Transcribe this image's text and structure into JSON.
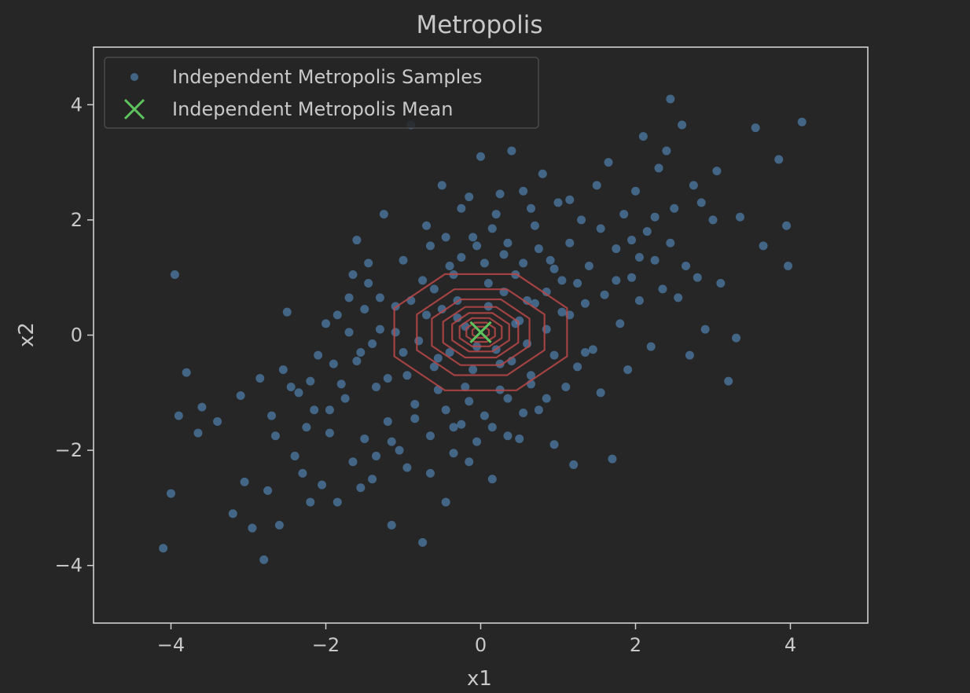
{
  "chart_data": {
    "type": "scatter",
    "title": "Metropolis",
    "xlabel": "x1",
    "ylabel": "x2",
    "xlim": [
      -5,
      5
    ],
    "ylim": [
      -5,
      5
    ],
    "xticks": [
      -4,
      -2,
      0,
      2,
      4
    ],
    "yticks": [
      -4,
      -2,
      0,
      2,
      4
    ],
    "xtick_labels": [
      "−4",
      "−2",
      "0",
      "2",
      "4"
    ],
    "ytick_labels": [
      "−4",
      "−2",
      "0",
      "2",
      "4"
    ],
    "grid": false,
    "legend_position": "upper-left",
    "series": [
      {
        "name": "Independent Metropolis Samples",
        "kind": "scatter",
        "color": "#5b9bd5",
        "points": [
          [
            -4.1,
            -3.7
          ],
          [
            -4.0,
            -2.75
          ],
          [
            -3.95,
            1.05
          ],
          [
            -3.9,
            -1.4
          ],
          [
            -3.8,
            -0.65
          ],
          [
            -3.65,
            -1.7
          ],
          [
            -3.6,
            -1.25
          ],
          [
            -3.2,
            -3.1
          ],
          [
            -3.05,
            -2.55
          ],
          [
            -2.95,
            -3.35
          ],
          [
            -2.8,
            -3.9
          ],
          [
            -2.75,
            -2.7
          ],
          [
            -2.7,
            -1.4
          ],
          [
            -2.6,
            -3.3
          ],
          [
            -2.55,
            -0.6
          ],
          [
            -2.5,
            0.4
          ],
          [
            -2.4,
            -2.1
          ],
          [
            -2.35,
            -1.0
          ],
          [
            -2.3,
            -2.4
          ],
          [
            -2.2,
            -0.8
          ],
          [
            -2.15,
            -1.3
          ],
          [
            -2.05,
            -2.6
          ],
          [
            -2.0,
            0.2
          ],
          [
            -1.95,
            -1.7
          ],
          [
            -1.9,
            -0.5
          ],
          [
            -1.85,
            -2.9
          ],
          [
            -1.75,
            -1.1
          ],
          [
            -1.7,
            0.65
          ],
          [
            -1.65,
            -2.2
          ],
          [
            -1.6,
            1.65
          ],
          [
            -1.55,
            -0.3
          ],
          [
            -1.5,
            -1.8
          ],
          [
            -1.45,
            0.9
          ],
          [
            -1.4,
            -2.5
          ],
          [
            -1.35,
            -0.9
          ],
          [
            -1.3,
            0.1
          ],
          [
            -1.25,
            2.1
          ],
          [
            -1.2,
            -1.5
          ],
          [
            -1.15,
            -3.3
          ],
          [
            -1.1,
            0.5
          ],
          [
            -1.05,
            -2.0
          ],
          [
            -1.0,
            1.3
          ],
          [
            -0.95,
            -0.7
          ],
          [
            -0.9,
            3.65
          ],
          [
            -0.85,
            -1.2
          ],
          [
            -0.75,
            -3.6
          ],
          [
            -0.7,
            1.9
          ],
          [
            -0.65,
            -2.4
          ],
          [
            -0.6,
            0.8
          ],
          [
            -0.55,
            -0.4
          ],
          [
            -0.5,
            2.6
          ],
          [
            -0.45,
            -2.9
          ],
          [
            -0.4,
            1.2
          ],
          [
            -0.35,
            -1.6
          ],
          [
            -0.3,
            0.3
          ],
          [
            -0.25,
            2.2
          ],
          [
            -0.2,
            -0.9
          ],
          [
            -0.15,
            -2.2
          ],
          [
            -0.1,
            1.7
          ],
          [
            -0.05,
            -0.2
          ],
          [
            0.0,
            3.1
          ],
          [
            0.05,
            -1.4
          ],
          [
            0.1,
            0.9
          ],
          [
            0.15,
            -2.5
          ],
          [
            0.2,
            2.1
          ],
          [
            0.25,
            -0.5
          ],
          [
            0.3,
            1.4
          ],
          [
            0.35,
            -1.1
          ],
          [
            0.4,
            3.2
          ],
          [
            0.45,
            0.2
          ],
          [
            0.5,
            -1.8
          ],
          [
            0.55,
            2.5
          ],
          [
            0.6,
            0.6
          ],
          [
            0.65,
            -0.7
          ],
          [
            0.7,
            1.9
          ],
          [
            0.75,
            -1.3
          ],
          [
            0.8,
            2.8
          ],
          [
            0.85,
            0.1
          ],
          [
            0.9,
            1.3
          ],
          [
            0.95,
            -1.9
          ],
          [
            1.0,
            2.3
          ],
          [
            1.05,
            0.4
          ],
          [
            1.1,
            -0.9
          ],
          [
            1.15,
            1.6
          ],
          [
            1.2,
            -2.25
          ],
          [
            1.25,
            0.9
          ],
          [
            1.3,
            2.0
          ],
          [
            1.35,
            -0.3
          ],
          [
            1.4,
            1.2
          ],
          [
            1.5,
            2.6
          ],
          [
            1.55,
            -1.0
          ],
          [
            1.6,
            0.7
          ],
          [
            1.65,
            3.0
          ],
          [
            1.7,
            -2.15
          ],
          [
            1.75,
            1.5
          ],
          [
            1.8,
            0.2
          ],
          [
            1.85,
            2.1
          ],
          [
            1.9,
            -0.6
          ],
          [
            1.95,
            1.0
          ],
          [
            2.0,
            2.5
          ],
          [
            2.05,
            0.6
          ],
          [
            2.1,
            3.45
          ],
          [
            2.15,
            1.8
          ],
          [
            2.2,
            -0.2
          ],
          [
            2.25,
            1.3
          ],
          [
            2.3,
            2.9
          ],
          [
            2.35,
            0.8
          ],
          [
            2.4,
            3.2
          ],
          [
            2.45,
            1.6
          ],
          [
            2.5,
            2.2
          ],
          [
            2.55,
            0.65
          ],
          [
            2.6,
            3.65
          ],
          [
            2.65,
            1.2
          ],
          [
            2.7,
            -0.35
          ],
          [
            2.75,
            2.6
          ],
          [
            2.8,
            1.0
          ],
          [
            2.85,
            2.3
          ],
          [
            2.9,
            0.1
          ],
          [
            3.0,
            2.0
          ],
          [
            3.05,
            2.85
          ],
          [
            3.1,
            0.9
          ],
          [
            3.2,
            -0.8
          ],
          [
            3.3,
            -0.05
          ],
          [
            3.35,
            2.05
          ],
          [
            3.55,
            3.6
          ],
          [
            3.65,
            1.55
          ],
          [
            3.85,
            3.05
          ],
          [
            3.95,
            1.9
          ],
          [
            3.97,
            1.2
          ],
          [
            4.15,
            3.7
          ],
          [
            2.45,
            4.1
          ],
          [
            -0.8,
            -0.1
          ],
          [
            -0.7,
            0.35
          ],
          [
            -0.6,
            -0.55
          ],
          [
            -0.5,
            0.45
          ],
          [
            -0.4,
            -0.3
          ],
          [
            -0.3,
            0.6
          ],
          [
            -0.2,
            0.15
          ],
          [
            -0.1,
            -0.6
          ],
          [
            0.1,
            0.5
          ],
          [
            0.2,
            -0.25
          ],
          [
            0.3,
            0.75
          ],
          [
            0.4,
            -0.45
          ],
          [
            0.5,
            0.25
          ],
          [
            0.6,
            -0.15
          ],
          [
            0.7,
            0.55
          ],
          [
            -0.9,
            0.6
          ],
          [
            -1.0,
            -0.3
          ],
          [
            -1.1,
            0.05
          ],
          [
            -0.75,
            0.95
          ],
          [
            -0.55,
            -0.95
          ],
          [
            -0.35,
            1.05
          ],
          [
            -0.15,
            -1.15
          ],
          [
            0.05,
            1.25
          ],
          [
            0.25,
            -0.95
          ],
          [
            0.45,
            1.05
          ],
          [
            0.65,
            -0.85
          ],
          [
            0.85,
            0.75
          ],
          [
            0.95,
            -0.35
          ],
          [
            1.05,
            0.95
          ],
          [
            -1.2,
            -0.75
          ],
          [
            -1.3,
            0.65
          ],
          [
            -1.4,
            -0.15
          ],
          [
            -1.5,
            0.45
          ],
          [
            -1.6,
            -0.45
          ],
          [
            -1.7,
            0.05
          ],
          [
            -1.8,
            -0.85
          ],
          [
            -0.85,
            -1.45
          ],
          [
            -0.65,
            -1.75
          ],
          [
            -0.45,
            -1.3
          ],
          [
            -0.25,
            -1.55
          ],
          [
            -0.05,
            -1.85
          ],
          [
            0.15,
            -1.6
          ],
          [
            0.35,
            -1.75
          ],
          [
            -0.65,
            1.55
          ],
          [
            -0.45,
            1.7
          ],
          [
            -0.25,
            1.35
          ],
          [
            -0.05,
            1.55
          ],
          [
            0.15,
            1.85
          ],
          [
            0.35,
            1.6
          ],
          [
            0.55,
            1.25
          ],
          [
            0.75,
            1.5
          ],
          [
            0.95,
            1.15
          ],
          [
            1.15,
            0.35
          ],
          [
            1.25,
            -0.55
          ],
          [
            1.35,
            0.55
          ],
          [
            1.45,
            -0.25
          ],
          [
            -1.95,
            -1.3
          ],
          [
            -2.1,
            -0.35
          ],
          [
            -2.25,
            -1.6
          ],
          [
            -2.45,
            -0.9
          ],
          [
            -1.35,
            -2.1
          ],
          [
            -1.15,
            -1.85
          ],
          [
            -0.95,
            -2.3
          ],
          [
            -0.35,
            -2.05
          ],
          [
            0.55,
            -1.35
          ],
          [
            0.85,
            -1.1
          ],
          [
            1.55,
            1.85
          ],
          [
            1.75,
            0.95
          ],
          [
            1.95,
            1.65
          ],
          [
            2.05,
            1.35
          ],
          [
            2.25,
            2.05
          ],
          [
            1.15,
            2.35
          ],
          [
            0.65,
            2.2
          ],
          [
            0.25,
            2.45
          ],
          [
            -0.15,
            2.4
          ],
          [
            -1.45,
            1.25
          ],
          [
            -1.65,
            1.05
          ],
          [
            -1.85,
            0.35
          ],
          [
            -2.65,
            -1.75
          ],
          [
            -2.85,
            -0.75
          ],
          [
            -3.1,
            -1.05
          ],
          [
            -3.4,
            -1.5
          ],
          [
            -2.2,
            -2.9
          ],
          [
            -1.55,
            -2.65
          ]
        ]
      },
      {
        "name": "Independent Metropolis Mean",
        "kind": "marker",
        "marker": "x",
        "color": "#5ec45e",
        "x": 0.0,
        "y": 0.05
      }
    ],
    "contours": {
      "color": "#b84848",
      "center": [
        0.0,
        0.05
      ],
      "radii": [
        1.15,
        0.85,
        0.65,
        0.5,
        0.38,
        0.28,
        0.19,
        0.11
      ]
    }
  }
}
